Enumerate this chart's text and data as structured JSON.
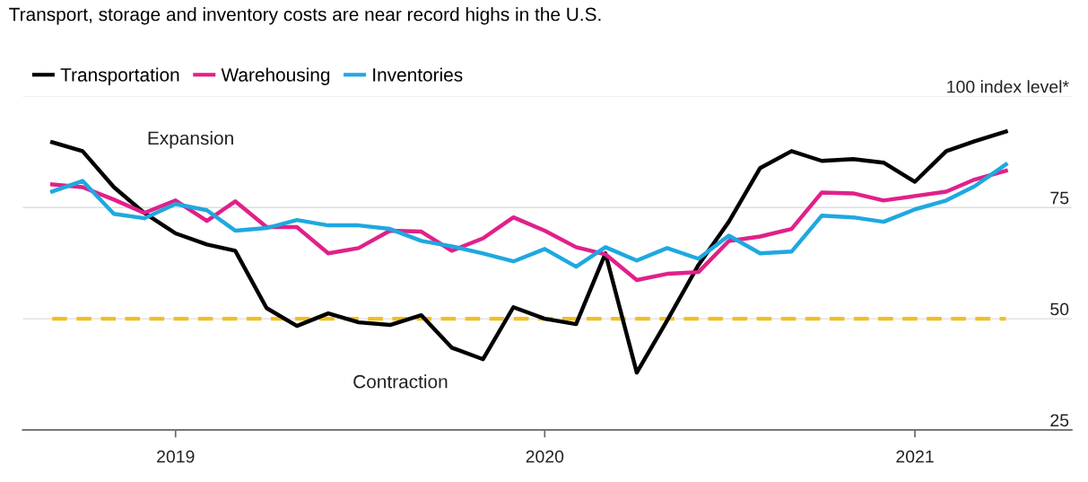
{
  "chart_data": {
    "type": "line",
    "title": "Transport, storage and inventory costs are near record highs in the U.S.",
    "x": [
      "2018-09",
      "2018-10",
      "2018-11",
      "2018-12",
      "2019-01",
      "2019-02",
      "2019-03",
      "2019-04",
      "2019-05",
      "2019-06",
      "2019-07",
      "2019-08",
      "2019-09",
      "2019-10",
      "2019-11",
      "2019-12",
      "2020-01",
      "2020-02",
      "2020-03",
      "2020-04",
      "2020-05",
      "2020-06",
      "2020-07",
      "2020-08",
      "2020-09",
      "2020-10",
      "2020-11",
      "2020-12",
      "2021-01",
      "2021-02",
      "2021-03",
      "2021-04"
    ],
    "series": [
      {
        "name": "Transportation",
        "color": "#000000",
        "values": [
          89.7,
          87.7,
          79.6,
          73.8,
          69.2,
          66.7,
          65.3,
          52.4,
          48.4,
          51.2,
          49.2,
          48.6,
          50.8,
          43.5,
          40.9,
          52.6,
          50.0,
          48.8,
          64.7,
          37.9,
          49.6,
          62.1,
          71.8,
          83.9,
          87.7,
          85.5,
          85.9,
          85.1,
          80.8,
          87.7,
          89.9,
          92.1
        ]
      },
      {
        "name": "Warehousing",
        "color": "#e0218a",
        "values": [
          80.2,
          79.6,
          76.8,
          73.8,
          76.6,
          72.0,
          76.4,
          70.6,
          70.6,
          64.7,
          65.9,
          69.8,
          69.6,
          65.3,
          68.1,
          72.8,
          69.8,
          66.1,
          64.5,
          58.7,
          60.1,
          60.5,
          67.5,
          68.5,
          70.2,
          78.4,
          78.2,
          76.6,
          77.6,
          78.6,
          81.3,
          83.3
        ]
      },
      {
        "name": "Inventories",
        "color": "#1fa8e0",
        "values": [
          78.6,
          81.0,
          73.6,
          72.6,
          75.8,
          74.4,
          69.8,
          70.4,
          72.2,
          71.0,
          71.0,
          70.2,
          67.5,
          66.3,
          64.7,
          62.9,
          65.7,
          61.7,
          66.1,
          63.1,
          65.9,
          63.5,
          68.7,
          64.7,
          65.1,
          73.2,
          72.8,
          71.8,
          74.6,
          76.6,
          79.8,
          84.7
        ]
      }
    ],
    "ref_lines": [
      {
        "axis": "y",
        "value": 50,
        "color": "#f2c01e",
        "line_style": "dashed"
      }
    ],
    "annotations": [
      "Expansion",
      "Contraction"
    ],
    "xlim": [
      "2018-08-03",
      "2021-06-05"
    ],
    "xticks": [
      {
        "value": "2019-01",
        "label": "2019"
      },
      {
        "value": "2020-01",
        "label": "2020"
      },
      {
        "value": "2021-01",
        "label": "2021"
      }
    ],
    "ylim": [
      25,
      100
    ],
    "yticks": [
      25,
      50,
      75,
      {
        "value": 100,
        "label": "100 index level*"
      }
    ],
    "grid": "y",
    "legend": "top left",
    "line_style": "solid",
    "marker": "none"
  }
}
